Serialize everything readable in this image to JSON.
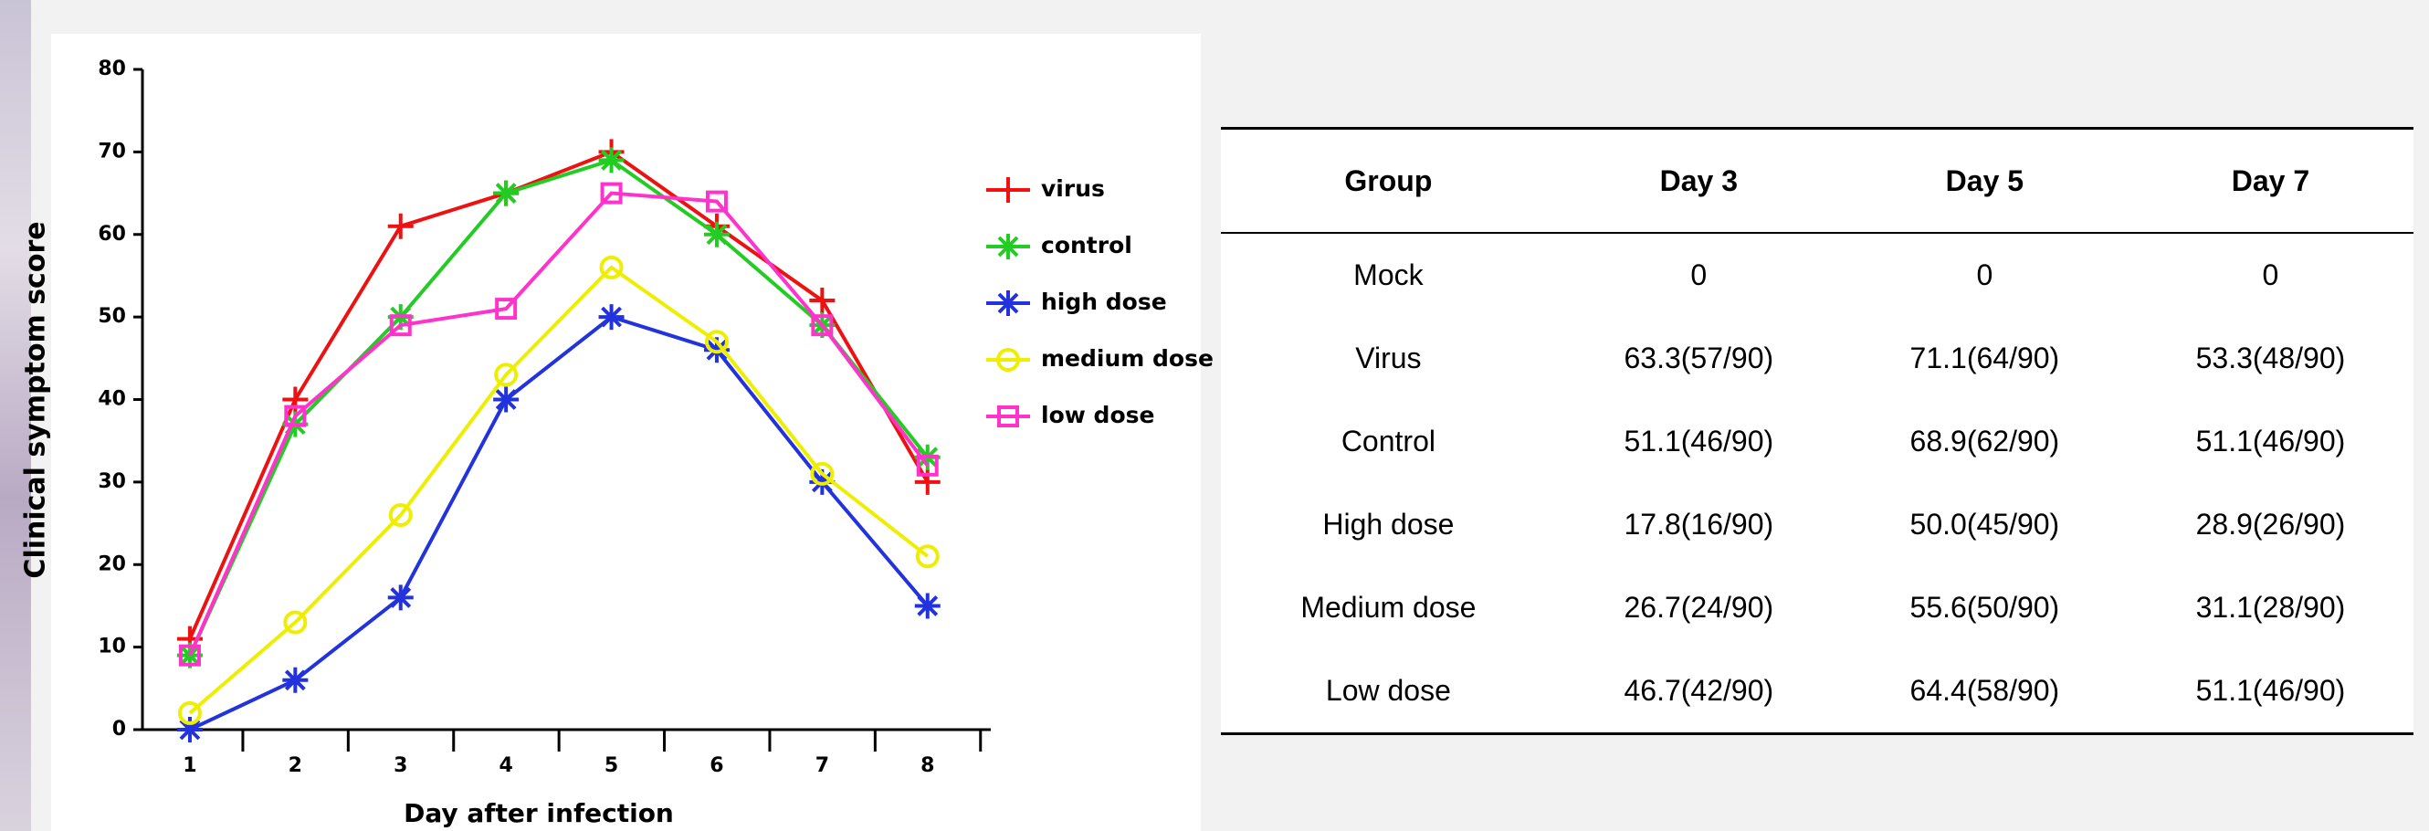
{
  "chart_data": {
    "type": "line",
    "y_label": "Clinical symptom score",
    "x_label": "Day after infection",
    "x": [
      1,
      2,
      3,
      4,
      5,
      6,
      7,
      8
    ],
    "xlim": [
      0.55,
      8.6
    ],
    "xticks": [
      1,
      2,
      3,
      4,
      5,
      6,
      7,
      8
    ],
    "ylim": [
      0,
      80
    ],
    "yticks": [
      0,
      10,
      20,
      30,
      40,
      50,
      60,
      70,
      80
    ],
    "series": [
      {
        "name": "virus",
        "color": "#ee1111",
        "marker": "plus",
        "values": [
          11,
          40,
          61,
          65,
          70,
          61,
          52,
          30
        ]
      },
      {
        "name": "control",
        "color": "#22cc22",
        "marker": "star",
        "values": [
          9,
          37,
          50,
          65,
          69,
          60,
          49,
          33
        ]
      },
      {
        "name": "high dose",
        "color": "#2233dd",
        "marker": "star",
        "values": [
          0,
          6,
          16,
          40,
          50,
          46,
          30,
          15
        ]
      },
      {
        "name": "medium dose",
        "color": "#eeee00",
        "marker": "circle",
        "values": [
          2,
          13,
          26,
          43,
          56,
          47,
          31,
          21
        ]
      },
      {
        "name": "low dose",
        "color": "#ff33cc",
        "marker": "square",
        "values": [
          9,
          38,
          49,
          51,
          65,
          64,
          49,
          32
        ]
      }
    ]
  },
  "table": {
    "header": [
      "Group",
      "Day 3",
      "Day 5",
      "Day 7"
    ],
    "rows": [
      [
        "Mock",
        "0",
        "0",
        "0"
      ],
      [
        "Virus",
        "63.3(57/90)",
        "71.1(64/90)",
        "53.3(48/90)"
      ],
      [
        "Control",
        "51.1(46/90)",
        "68.9(62/90)",
        "51.1(46/90)"
      ],
      [
        "High dose",
        "17.8(16/90)",
        "50.0(45/90)",
        "28.9(26/90)"
      ],
      [
        "Medium dose",
        "26.7(24/90)",
        "55.6(50/90)",
        "31.1(28/90)"
      ],
      [
        "Low dose",
        "46.7(42/90)",
        "64.4(58/90)",
        "51.1(46/90)"
      ]
    ]
  }
}
